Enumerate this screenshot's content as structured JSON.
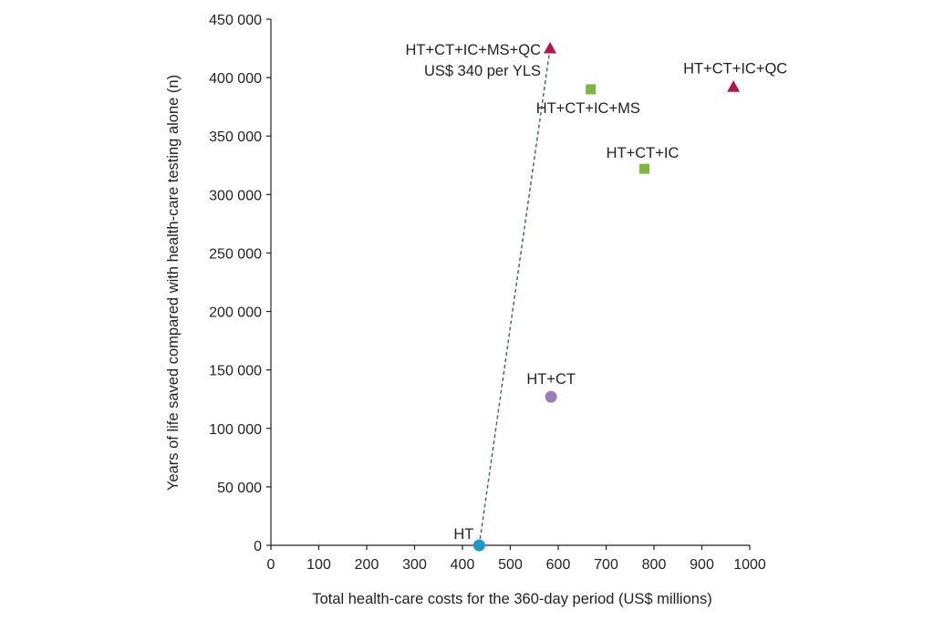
{
  "chart_data": {
    "type": "scatter",
    "title": "",
    "xlabel": "Total health-care costs for the 360-day period (US$ millions)",
    "ylabel": "Years of life saved compared with health-care testing alone (n)",
    "xlim": [
      0,
      1000
    ],
    "ylim": [
      0,
      450000
    ],
    "x_ticks": [
      0,
      100,
      200,
      300,
      400,
      500,
      600,
      700,
      800,
      900,
      1000
    ],
    "x_tick_labels": [
      "0",
      "100",
      "200",
      "300",
      "400",
      "500",
      "600",
      "700",
      "800",
      "900",
      "1000"
    ],
    "y_ticks": [
      0,
      50000,
      100000,
      150000,
      200000,
      250000,
      300000,
      350000,
      400000,
      450000
    ],
    "y_tick_labels": [
      "0",
      "50 000",
      "100 000",
      "150 000",
      "200 000",
      "250 000",
      "300 000",
      "350 000",
      "400 000",
      "450 000"
    ],
    "grid": false,
    "points": [
      {
        "label": "HT",
        "x": 435,
        "y": 0,
        "shape": "circle",
        "color": "#1a9bc9"
      },
      {
        "label": "HT+CT",
        "x": 585,
        "y": 127000,
        "shape": "circle",
        "color": "#9a7bbb"
      },
      {
        "label": "HT+CT+IC",
        "x": 780,
        "y": 322000,
        "shape": "square",
        "color": "#7ab83f"
      },
      {
        "label": "HT+CT+IC+MS",
        "x": 668,
        "y": 390000,
        "shape": "square",
        "color": "#7ab83f"
      },
      {
        "label": "HT+CT+IC+QC",
        "x": 966,
        "y": 392000,
        "shape": "triangle",
        "color": "#b5174a"
      },
      {
        "label": "HT+CT+IC+MS+QC",
        "x": 583,
        "y": 425000,
        "shape": "triangle",
        "color": "#b5174a"
      }
    ],
    "annotations": [
      {
        "text": "US$ 340 per YLS",
        "anchor_point": "HT+CT+IC+MS+QC"
      }
    ],
    "frontier": {
      "from": "HT",
      "to": "HT+CT+IC+MS+QC",
      "style": "dashed",
      "color": "#3e6b86"
    }
  }
}
